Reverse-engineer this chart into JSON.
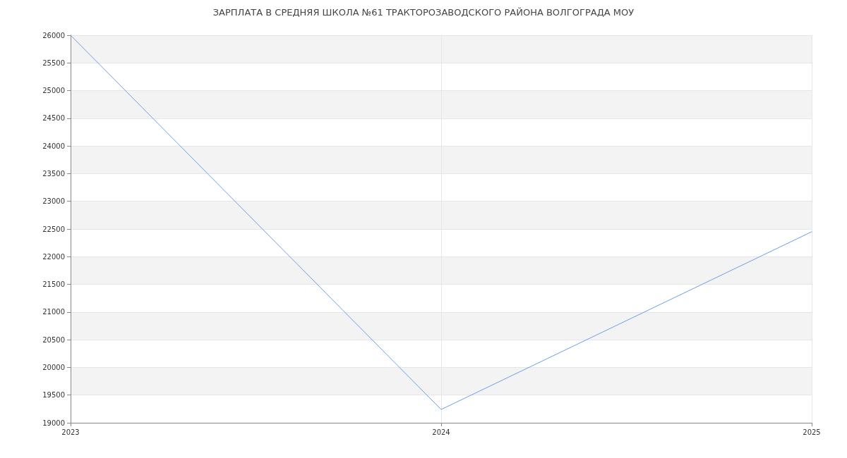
{
  "chart_data": {
    "type": "line",
    "title": "ЗАРПЛАТА В СРЕДНЯЯ ШКОЛА №61 ТРАКТОРОЗАВОДСКОГО РАЙОНА ВОЛГОГРАДА МОУ",
    "x": [
      2023,
      2024,
      2025
    ],
    "series": [
      {
        "color": "#6d9eeb",
        "values": [
          26000,
          19240,
          22450
        ]
      }
    ],
    "xlim": [
      2023,
      2025
    ],
    "xticks": [
      2023,
      2024,
      2025
    ],
    "ylim": [
      19000,
      26000
    ],
    "yticks": [
      19000,
      19500,
      20000,
      20500,
      21000,
      21500,
      22000,
      22500,
      23000,
      23500,
      24000,
      24500,
      25000,
      25500,
      26000
    ],
    "grid": true,
    "marker": "none",
    "line_style": "solid"
  }
}
